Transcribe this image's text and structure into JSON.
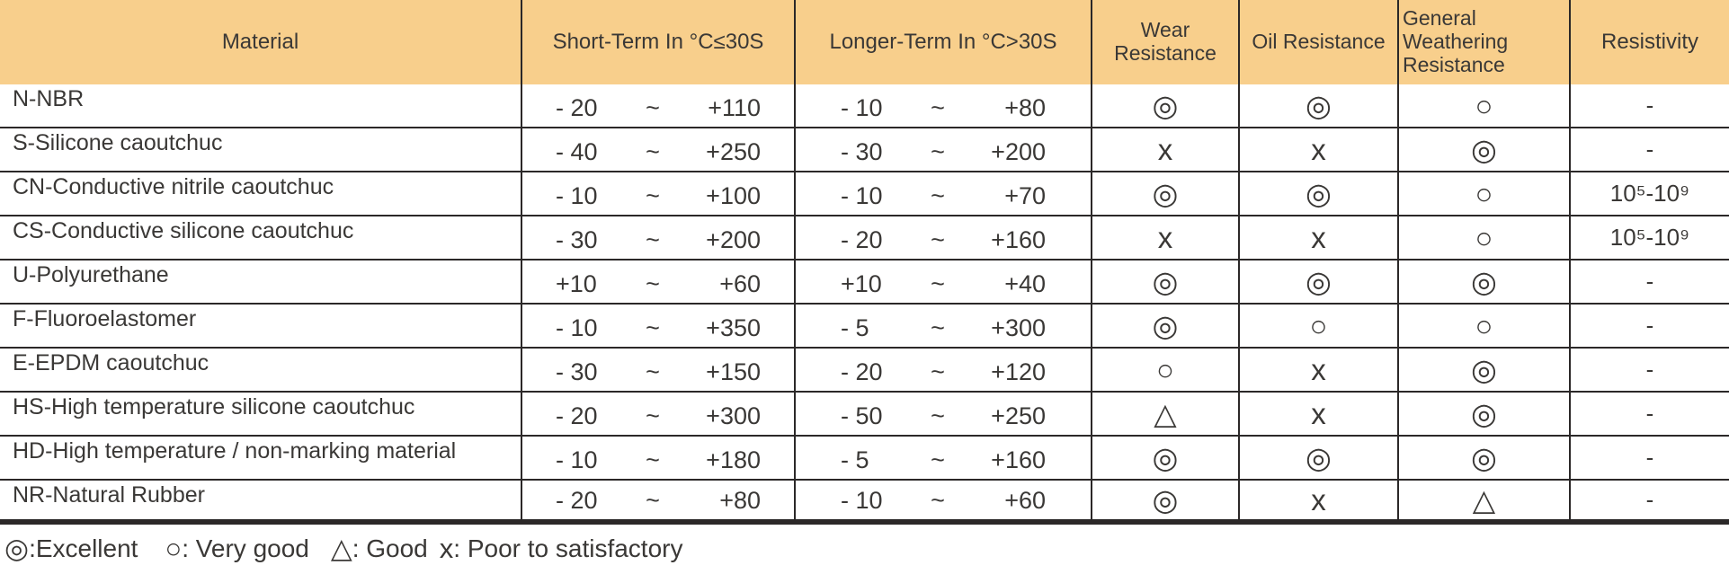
{
  "colors": {
    "header_background": "#F8CF8C",
    "grid_line": "#2b2828",
    "text": "#3a3836"
  },
  "table": {
    "range_separator": "~",
    "columns": [
      {
        "label": "Material"
      },
      {
        "label": "Short-Term In °C≤30S"
      },
      {
        "label": "Longer-Term In °C>30S"
      },
      {
        "label": "Wear Resistance"
      },
      {
        "label": "Oil Resistance"
      },
      {
        "label": "General Weathering Resistance"
      },
      {
        "label": "Resistivity"
      }
    ],
    "rows": [
      {
        "material": "N-NBR",
        "short_min": "- 20",
        "short_max": "+110",
        "long_min": "- 10",
        "long_max": "+80",
        "wear": "◎",
        "oil": "◎",
        "weathering": "○",
        "resistivity": "-"
      },
      {
        "material": "S-Silicone caoutchuc",
        "short_min": "- 40",
        "short_max": "+250",
        "long_min": "- 30",
        "long_max": "+200",
        "wear": "x",
        "oil": "x",
        "weathering": "◎",
        "resistivity": "-"
      },
      {
        "material": "CN-Conductive nitrile caoutchuc",
        "short_min": "- 10",
        "short_max": "+100",
        "long_min": "- 10",
        "long_max": "+70",
        "wear": "◎",
        "oil": "◎",
        "weathering": "○",
        "resistivity": "10⁵-10⁹"
      },
      {
        "material": "CS-Conductive silicone caoutchuc",
        "short_min": "- 30",
        "short_max": "+200",
        "long_min": "- 20",
        "long_max": "+160",
        "wear": "x",
        "oil": "x",
        "weathering": "○",
        "resistivity": "10⁵-10⁹"
      },
      {
        "material": "U-Polyurethane",
        "short_min": "+10",
        "short_max": "+60",
        "long_min": "+10",
        "long_max": "+40",
        "wear": "◎",
        "oil": "◎",
        "weathering": "◎",
        "resistivity": "-"
      },
      {
        "material": "F-Fluoroelastomer",
        "short_min": "- 10",
        "short_max": "+350",
        "long_min": "- 5",
        "long_max": "+300",
        "wear": "◎",
        "oil": "○",
        "weathering": "○",
        "resistivity": "-"
      },
      {
        "material": "E-EPDM caoutchuc",
        "short_min": "- 30",
        "short_max": "+150",
        "long_min": "- 20",
        "long_max": "+120",
        "wear": "○",
        "oil": "x",
        "weathering": "◎",
        "resistivity": "-"
      },
      {
        "material": "HS-High temperature silicone caoutchuc",
        "short_min": "- 20",
        "short_max": "+300",
        "long_min": "- 50",
        "long_max": "+250",
        "wear": "△",
        "oil": "x",
        "weathering": "◎",
        "resistivity": "-"
      },
      {
        "material": "HD-High temperature / non-marking material",
        "short_min": "- 10",
        "short_max": "+180",
        "long_min": "- 5",
        "long_max": "+160",
        "wear": "◎",
        "oil": "◎",
        "weathering": "◎",
        "resistivity": "-"
      },
      {
        "material": "NR-Natural Rubber",
        "short_min": "- 20",
        "short_max": "+80",
        "long_min": "- 10",
        "long_max": "+60",
        "wear": "◎",
        "oil": "x",
        "weathering": "△",
        "resistivity": "-"
      }
    ]
  },
  "legend": {
    "items": [
      {
        "symbol": "◎",
        "text": ":Excellent"
      },
      {
        "symbol": "○",
        "text": ": Very good"
      },
      {
        "symbol": "△",
        "text": ": Good"
      },
      {
        "symbol": "x",
        "text": ": Poor to satisfactory"
      }
    ]
  }
}
